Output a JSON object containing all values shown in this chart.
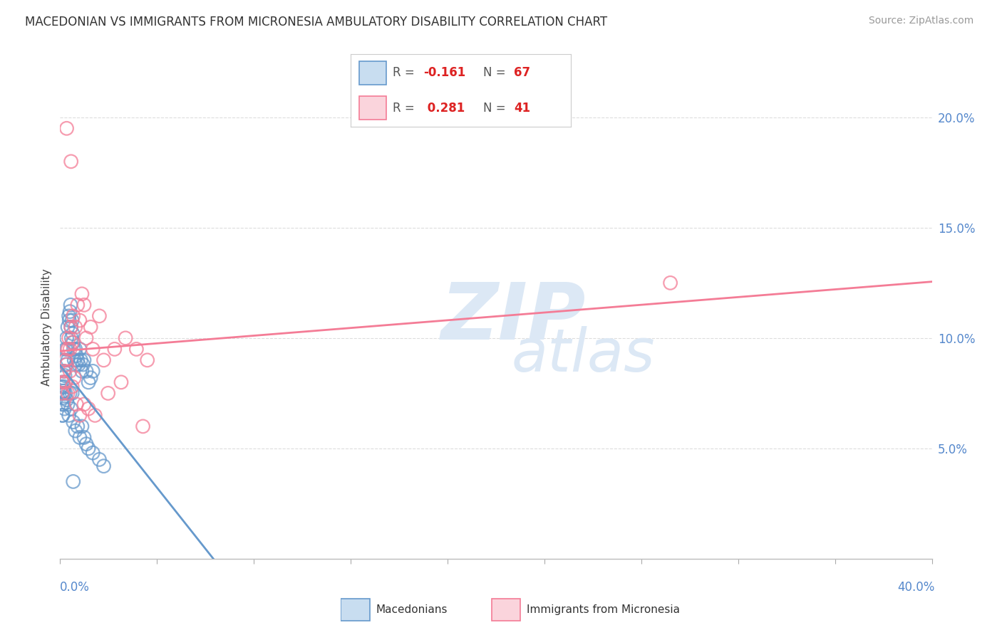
{
  "title": "MACEDONIAN VS IMMIGRANTS FROM MICRONESIA AMBULATORY DISABILITY CORRELATION CHART",
  "source": "Source: ZipAtlas.com",
  "ylabel": "Ambulatory Disability",
  "blue_color": "#6699cc",
  "pink_color": "#f47c96",
  "watermark_color": "#e0e8f4",
  "background_color": "#ffffff",
  "grid_color": "#dddddd",
  "R_mac": -0.161,
  "N_mac": 67,
  "R_mic": 0.281,
  "N_mic": 41,
  "xlim": [
    0,
    40
  ],
  "ylim": [
    0,
    21
  ],
  "ytick_vals": [
    5,
    10,
    15,
    20
  ],
  "ytick_labels": [
    "5.0%",
    "10.0%",
    "15.0%",
    "20.0%"
  ],
  "mac_x": [
    0.05,
    0.08,
    0.1,
    0.12,
    0.13,
    0.15,
    0.17,
    0.18,
    0.2,
    0.22,
    0.25,
    0.27,
    0.3,
    0.32,
    0.35,
    0.4,
    0.42,
    0.45,
    0.48,
    0.5,
    0.52,
    0.55,
    0.58,
    0.6,
    0.62,
    0.65,
    0.7,
    0.72,
    0.75,
    0.8,
    0.85,
    0.9,
    0.95,
    1.0,
    1.05,
    1.1,
    1.2,
    1.3,
    1.4,
    1.5,
    0.1,
    0.15,
    0.2,
    0.25,
    0.3,
    0.35,
    0.4,
    0.5,
    0.55,
    0.6,
    0.7,
    0.8,
    0.9,
    1.0,
    1.1,
    1.2,
    1.3,
    1.5,
    1.8,
    2.0,
    0.08,
    0.12,
    0.18,
    0.25,
    0.35,
    0.45,
    0.6
  ],
  "mac_y": [
    7.8,
    7.5,
    8.0,
    7.3,
    8.2,
    7.6,
    8.5,
    7.8,
    9.0,
    8.3,
    9.5,
    8.8,
    10.0,
    9.5,
    10.5,
    11.0,
    10.8,
    11.2,
    11.5,
    10.5,
    10.0,
    10.8,
    10.2,
    9.8,
    9.5,
    9.0,
    9.5,
    8.8,
    9.2,
    9.0,
    8.8,
    9.5,
    9.0,
    8.5,
    8.8,
    9.0,
    8.5,
    8.0,
    8.2,
    8.5,
    6.5,
    7.0,
    6.8,
    7.5,
    7.2,
    7.0,
    6.5,
    6.8,
    7.5,
    6.2,
    5.8,
    6.0,
    5.5,
    6.0,
    5.5,
    5.2,
    5.0,
    4.8,
    4.5,
    4.2,
    7.0,
    6.5,
    7.5,
    8.0,
    9.0,
    7.5,
    3.5
  ],
  "mic_x": [
    0.1,
    0.15,
    0.2,
    0.25,
    0.3,
    0.35,
    0.4,
    0.45,
    0.5,
    0.55,
    0.6,
    0.7,
    0.8,
    0.9,
    1.0,
    1.1,
    1.2,
    1.4,
    1.5,
    1.8,
    2.0,
    2.5,
    3.0,
    3.5,
    4.0,
    0.25,
    0.35,
    0.45,
    0.55,
    0.65,
    0.75,
    0.9,
    1.1,
    1.3,
    1.6,
    2.2,
    2.8,
    3.8,
    0.3,
    0.5,
    28.0
  ],
  "mic_y": [
    7.5,
    8.0,
    8.5,
    9.0,
    8.8,
    9.5,
    10.0,
    9.5,
    10.5,
    9.8,
    11.0,
    10.5,
    11.5,
    10.8,
    12.0,
    11.5,
    10.0,
    10.5,
    9.5,
    11.0,
    9.0,
    9.5,
    10.0,
    9.5,
    9.0,
    8.0,
    7.5,
    8.5,
    7.8,
    8.2,
    7.0,
    6.5,
    7.0,
    6.8,
    6.5,
    7.5,
    8.0,
    6.0,
    19.5,
    18.0,
    12.5
  ]
}
